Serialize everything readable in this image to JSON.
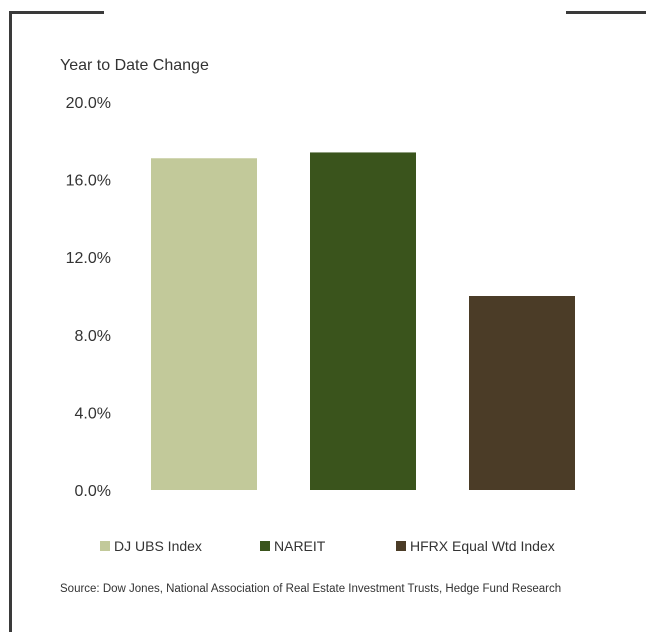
{
  "chart_data": {
    "type": "bar",
    "title": "Year to Date Change",
    "categories": [
      "DJ UBS Index",
      "NAREIT",
      "HFRX Equal Wtd Index"
    ],
    "values": [
      17.1,
      17.4,
      10.0
    ],
    "colors": [
      "#c2c99a",
      "#3a541c",
      "#4b3c27"
    ],
    "ylim": [
      0,
      20
    ],
    "yticks": [
      "0.0%",
      "4.0%",
      "8.0%",
      "12.0%",
      "16.0%",
      "20.0%"
    ],
    "ytick_values": [
      0,
      4,
      8,
      12,
      16,
      20
    ],
    "grid": false,
    "legend_position": "bottom"
  },
  "source": "Source: Dow Jones, National Association of Real Estate Investment Trusts, Hedge Fund Research"
}
